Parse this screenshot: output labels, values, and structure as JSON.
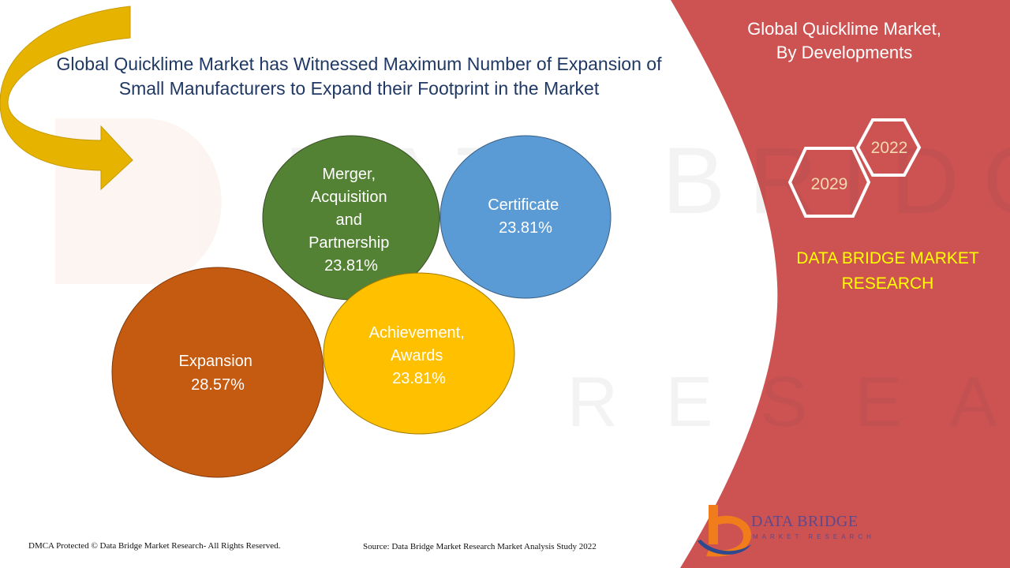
{
  "headline": "Global Quicklime Market has Witnessed Maximum Number of Expansion of Small Manufacturers to Expand their Footprint in the Market",
  "panel": {
    "title_line1": "Global Quicklime Market,",
    "title_line2": "By Developments",
    "year_start": "2022",
    "year_end": "2029",
    "brand_line1": "DATA BRIDGE MARKET",
    "brand_line2": "RESEARCH"
  },
  "footer": {
    "copyright": "DMCA Protected © Data Bridge Market Research- All Rights Reserved.",
    "source": "Source: Data Bridge Market Research Market Analysis Study 2022"
  },
  "logo": {
    "name": "DATA BRIDGE",
    "tagline": "MARKET RESEARCH"
  },
  "colors": {
    "panel_red": "#cd5252",
    "arrow_gold": "#e6b400",
    "headline_navy": "#1f3864"
  },
  "icons": [
    "curved-arrow-icon",
    "hexagon-icon",
    "data-bridge-logo-icon"
  ],
  "chart_data": {
    "type": "bubble",
    "title": "",
    "series": [
      {
        "label_lines": [
          "Merger,",
          "Acquisition",
          "and",
          "Partnership"
        ],
        "value": 23.81,
        "value_text": "23.81%",
        "color": "#548235"
      },
      {
        "label_lines": [
          "Certificate"
        ],
        "value": 23.81,
        "value_text": "23.81%",
        "color": "#5b9bd5"
      },
      {
        "label_lines": [
          "Expansion"
        ],
        "value": 28.57,
        "value_text": "28.57%",
        "color": "#c55a11"
      },
      {
        "label_lines": [
          "Achievement,",
          "Awards"
        ],
        "value": 23.81,
        "value_text": "23.81%",
        "color": "#ffc000"
      }
    ]
  }
}
